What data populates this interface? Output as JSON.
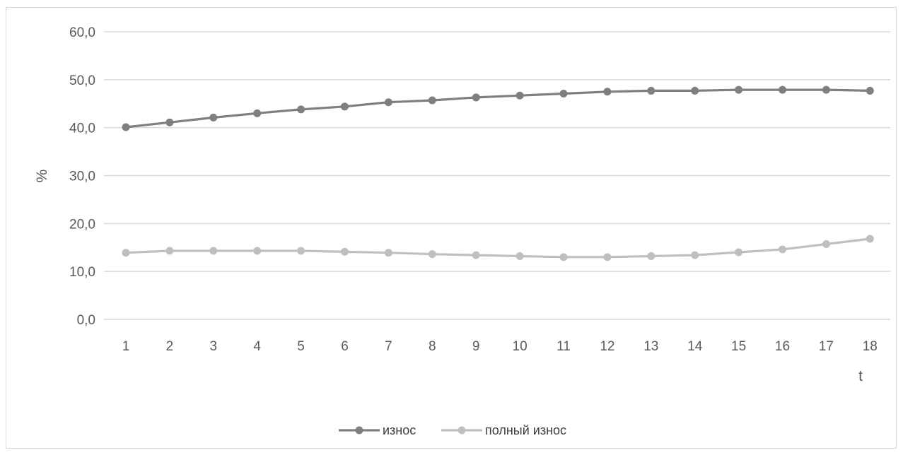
{
  "chart_data": {
    "type": "line",
    "title": "",
    "xlabel": "t",
    "ylabel": "%",
    "categories": [
      "1",
      "2",
      "3",
      "4",
      "5",
      "6",
      "7",
      "8",
      "9",
      "10",
      "11",
      "12",
      "13",
      "14",
      "15",
      "16",
      "17",
      "18"
    ],
    "ylim": [
      0,
      60
    ],
    "y_ticks": [
      "0,0",
      "10,0",
      "20,0",
      "30,0",
      "40,0",
      "50,0",
      "60,0"
    ],
    "grid": true,
    "legend_position": "bottom",
    "series": [
      {
        "name": "износ",
        "color": "#7f7f7f",
        "values": [
          40.1,
          41.1,
          42.1,
          43.0,
          43.8,
          44.4,
          45.3,
          45.7,
          46.3,
          46.7,
          47.1,
          47.5,
          47.7,
          47.7,
          47.9,
          47.9,
          47.9,
          47.7
        ]
      },
      {
        "name": "полный износ",
        "color": "#bfbfbf",
        "values": [
          13.9,
          14.3,
          14.3,
          14.3,
          14.3,
          14.1,
          13.9,
          13.6,
          13.4,
          13.2,
          13.0,
          13.0,
          13.2,
          13.4,
          14.0,
          14.6,
          15.7,
          16.8
        ]
      }
    ]
  }
}
